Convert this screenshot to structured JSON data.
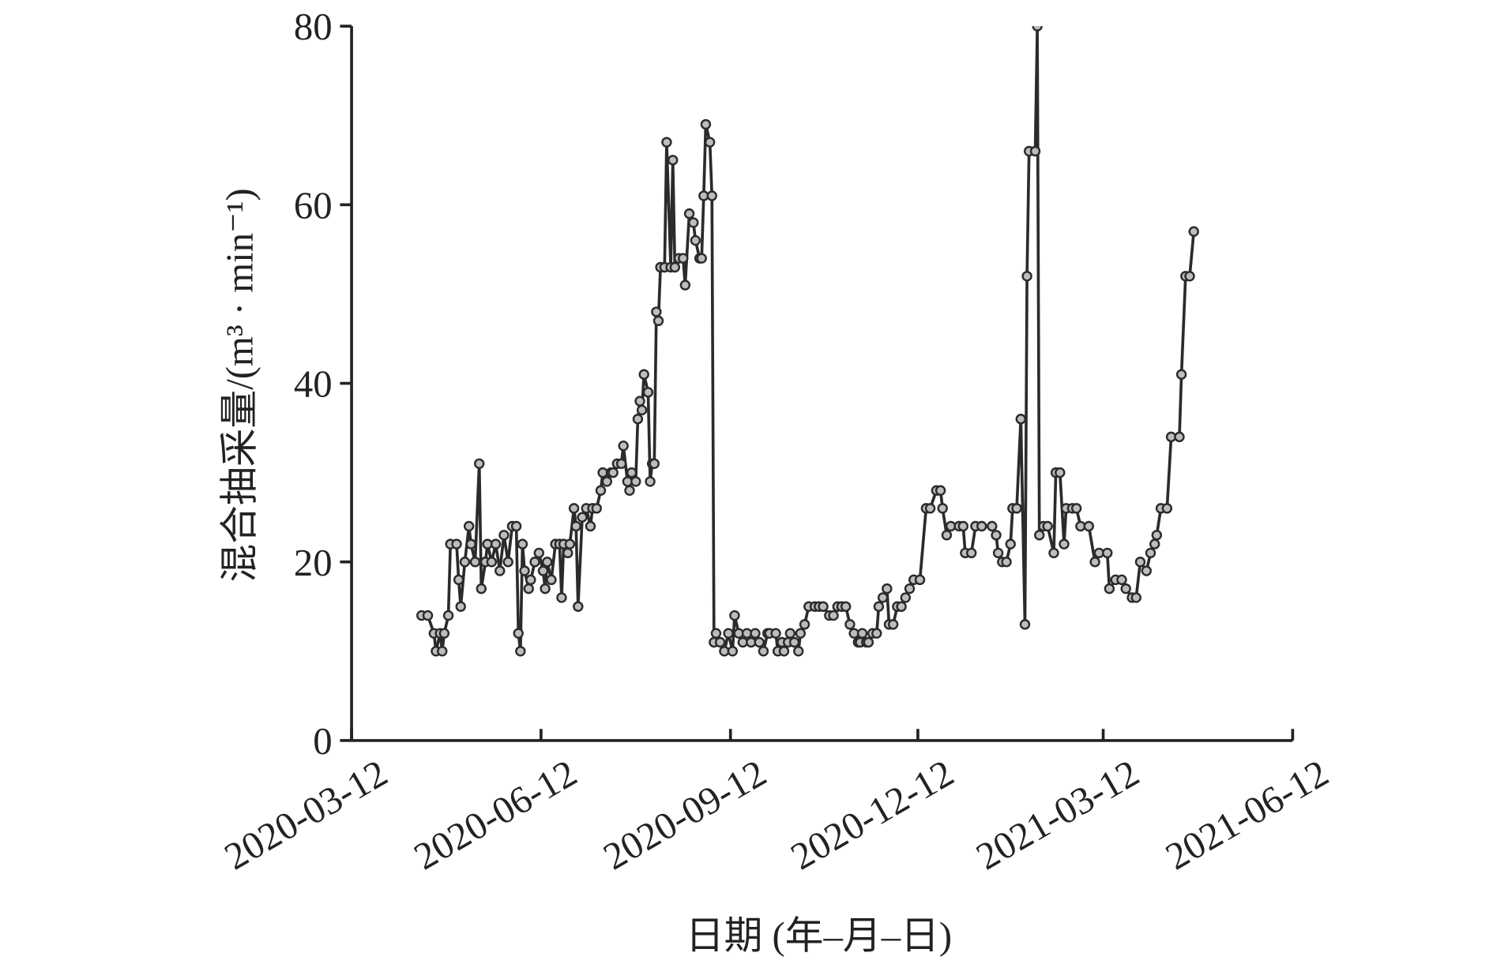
{
  "chart_data": {
    "type": "line",
    "y_label": "混合抽采量/(m³ · min⁻¹)",
    "x_label": "日期 (年–月–日)",
    "xlim": [
      "2020-03-12",
      "2021-06-12"
    ],
    "xticks": [
      "2020-03-12",
      "2020-06-12",
      "2020-09-12",
      "2020-12-12",
      "2021-03-12",
      "2021-06-12"
    ],
    "ylim": [
      0,
      80
    ],
    "yticks": [
      0,
      20,
      40,
      60,
      80
    ],
    "series": [
      {
        "color": "#2b2b2b",
        "marker_color": "#bdbdbd",
        "x": [
          "2020-04-15",
          "2020-04-18",
          "2020-04-21",
          "2020-04-22",
          "2020-04-24",
          "2020-04-25",
          "2020-04-26",
          "2020-04-28",
          "2020-04-29",
          "2020-05-02",
          "2020-05-03",
          "2020-05-04",
          "2020-05-06",
          "2020-05-08",
          "2020-05-09",
          "2020-05-11",
          "2020-05-13",
          "2020-05-14",
          "2020-05-16",
          "2020-05-17",
          "2020-05-19",
          "2020-05-21",
          "2020-05-23",
          "2020-05-25",
          "2020-05-27",
          "2020-05-29",
          "2020-05-31",
          "2020-06-01",
          "2020-06-02",
          "2020-06-03",
          "2020-06-04",
          "2020-06-06",
          "2020-06-07",
          "2020-06-09",
          "2020-06-11",
          "2020-06-13",
          "2020-06-14",
          "2020-06-15",
          "2020-06-17",
          "2020-06-19",
          "2020-06-21",
          "2020-06-22",
          "2020-06-23",
          "2020-06-25",
          "2020-06-26",
          "2020-06-28",
          "2020-06-29",
          "2020-06-30",
          "2020-07-02",
          "2020-07-04",
          "2020-07-06",
          "2020-07-07",
          "2020-07-09",
          "2020-07-11",
          "2020-07-12",
          "2020-07-14",
          "2020-07-16",
          "2020-07-17",
          "2020-07-19",
          "2020-07-21",
          "2020-07-22",
          "2020-07-24",
          "2020-07-25",
          "2020-07-26",
          "2020-07-28",
          "2020-07-29",
          "2020-07-30",
          "2020-07-31",
          "2020-08-01",
          "2020-08-03",
          "2020-08-04",
          "2020-08-05",
          "2020-08-06",
          "2020-08-07",
          "2020-08-08",
          "2020-08-09",
          "2020-08-11",
          "2020-08-12",
          "2020-08-14",
          "2020-08-15",
          "2020-08-16",
          "2020-08-18",
          "2020-08-20",
          "2020-08-21",
          "2020-08-23",
          "2020-08-25",
          "2020-08-26",
          "2020-08-28",
          "2020-08-29",
          "2020-08-30",
          "2020-08-31",
          "2020-09-02",
          "2020-09-03",
          "2020-09-04",
          "2020-09-05",
          "2020-09-07",
          "2020-09-09",
          "2020-09-11",
          "2020-09-13",
          "2020-09-14",
          "2020-09-16",
          "2020-09-18",
          "2020-09-20",
          "2020-09-22",
          "2020-09-24",
          "2020-09-26",
          "2020-09-28",
          "2020-09-30",
          "2020-10-01",
          "2020-10-04",
          "2020-10-05",
          "2020-10-07",
          "2020-10-08",
          "2020-10-10",
          "2020-10-11",
          "2020-10-13",
          "2020-10-15",
          "2020-10-16",
          "2020-10-18",
          "2020-10-20",
          "2020-10-23",
          "2020-10-25",
          "2020-10-27",
          "2020-10-30",
          "2020-11-01",
          "2020-11-03",
          "2020-11-05",
          "2020-11-07",
          "2020-11-09",
          "2020-11-11",
          "2020-11-13",
          "2020-11-14",
          "2020-11-15",
          "2020-11-17",
          "2020-11-18",
          "2020-11-20",
          "2020-11-22",
          "2020-11-23",
          "2020-11-25",
          "2020-11-27",
          "2020-11-28",
          "2020-11-30",
          "2020-12-02",
          "2020-12-04",
          "2020-12-06",
          "2020-12-08",
          "2020-12-10",
          "2020-12-13",
          "2020-12-16",
          "2020-12-18",
          "2020-12-21",
          "2020-12-23",
          "2020-12-24",
          "2020-12-26",
          "2020-12-28",
          "2021-01-01",
          "2021-01-03",
          "2021-01-04",
          "2021-01-07",
          "2021-01-09",
          "2021-01-12",
          "2021-01-17",
          "2021-01-19",
          "2021-01-20",
          "2021-01-22",
          "2021-01-24",
          "2021-01-26",
          "2021-01-27",
          "2021-01-29",
          "2021-01-31",
          "2021-02-02",
          "2021-02-03",
          "2021-02-04",
          "2021-02-07",
          "2021-02-08",
          "2021-02-09",
          "2021-02-11",
          "2021-02-13",
          "2021-02-16",
          "2021-02-17",
          "2021-02-19",
          "2021-02-21",
          "2021-02-22",
          "2021-02-25",
          "2021-02-27",
          "2021-03-01",
          "2021-03-05",
          "2021-03-08",
          "2021-03-10",
          "2021-03-14",
          "2021-03-15",
          "2021-03-18",
          "2021-03-21",
          "2021-03-23",
          "2021-03-26",
          "2021-03-28",
          "2021-03-30",
          "2021-04-02",
          "2021-04-04",
          "2021-04-06",
          "2021-04-07",
          "2021-04-09",
          "2021-04-12",
          "2021-04-14",
          "2021-04-18",
          "2021-04-19",
          "2021-04-21",
          "2021-04-23",
          "2021-04-25"
        ],
        "values": [
          14,
          14,
          12,
          10,
          12,
          10,
          12,
          14,
          22,
          22,
          18,
          15,
          20,
          24,
          22,
          20,
          31,
          17,
          20,
          22,
          20,
          22,
          19,
          23,
          20,
          24,
          24,
          12,
          10,
          22,
          19,
          17,
          18,
          20,
          21,
          19,
          17,
          20,
          18,
          22,
          22,
          16,
          22,
          21,
          22,
          26,
          24,
          15,
          25,
          26,
          24,
          26,
          26,
          28,
          30,
          29,
          30,
          30,
          31,
          31,
          33,
          29,
          28,
          30,
          29,
          36,
          38,
          37,
          41,
          39,
          29,
          31,
          31,
          48,
          47,
          53,
          53,
          67,
          53,
          65,
          53,
          54,
          54,
          51,
          59,
          58,
          56,
          54,
          54,
          61,
          69,
          67,
          61,
          11,
          12,
          11,
          10,
          12,
          10,
          14,
          12,
          11,
          12,
          11,
          12,
          11,
          10,
          12,
          12,
          12,
          10,
          11,
          10,
          11,
          12,
          11,
          10,
          12,
          13,
          15,
          15,
          15,
          15,
          14,
          14,
          15,
          15,
          15,
          13,
          12,
          11,
          11,
          12,
          11,
          11,
          12,
          12,
          15,
          16,
          17,
          13,
          13,
          15,
          15,
          16,
          17,
          18,
          18,
          26,
          26,
          28,
          28,
          26,
          23,
          24,
          24,
          24,
          21,
          21,
          24,
          24,
          24,
          23,
          21,
          20,
          20,
          22,
          26,
          26,
          36,
          13,
          52,
          66,
          66,
          80,
          23,
          24,
          24,
          21,
          30,
          30,
          22,
          26,
          26,
          26,
          24,
          24,
          20,
          21,
          21,
          17,
          18,
          18,
          17,
          16,
          16,
          20,
          19,
          21,
          22,
          23,
          26,
          26,
          34,
          34,
          41,
          52,
          52,
          57
        ]
      }
    ]
  }
}
